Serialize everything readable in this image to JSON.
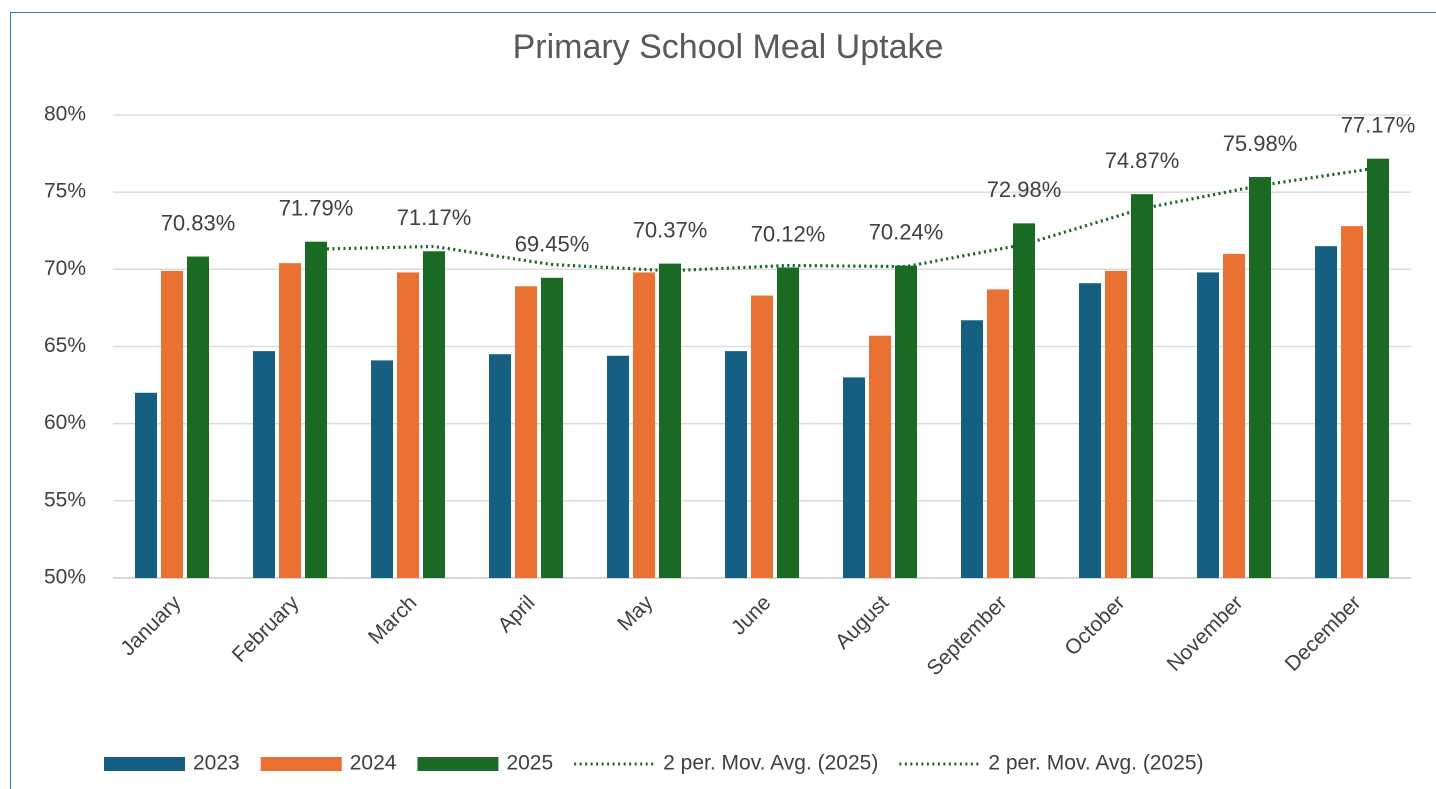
{
  "chart_data": {
    "type": "bar",
    "title": "Primary School Meal Uptake",
    "categories": [
      "January",
      "February",
      "March",
      "April",
      "May",
      "June",
      "August",
      "September",
      "October",
      "November",
      "December"
    ],
    "series": [
      {
        "name": "2023",
        "color": "#156082",
        "values": [
          62.0,
          64.7,
          64.1,
          64.5,
          64.4,
          64.7,
          63.0,
          66.7,
          69.1,
          69.8,
          71.5
        ]
      },
      {
        "name": "2024",
        "color": "#E97132",
        "values": [
          69.9,
          70.4,
          69.8,
          68.9,
          69.8,
          68.3,
          65.7,
          68.7,
          69.9,
          71.0,
          72.8
        ]
      },
      {
        "name": "2025",
        "color": "#196B24",
        "values": [
          70.83,
          71.79,
          71.17,
          69.45,
          70.37,
          70.12,
          70.24,
          72.98,
          74.87,
          75.98,
          77.17
        ],
        "value_labels": [
          "70.83%",
          "71.79%",
          "71.17%",
          "69.45%",
          "70.37%",
          "70.12%",
          "70.24%",
          "72.98%",
          "74.87%",
          "75.98%",
          "77.17%"
        ]
      },
      {
        "name": "2 per. Mov. Avg. (2025)",
        "type": "line",
        "style": "dotted",
        "color": "#196B24",
        "values": [
          null,
          71.31,
          71.48,
          70.31,
          69.91,
          70.25,
          70.18,
          71.61,
          73.93,
          75.43,
          76.58
        ]
      },
      {
        "name": "2 per. Mov. Avg. (2025)",
        "type": "line",
        "style": "dotted",
        "color": "#196B24",
        "values": [
          null,
          71.31,
          71.48,
          70.31,
          69.91,
          70.25,
          70.18,
          71.61,
          73.93,
          75.43,
          76.58
        ]
      }
    ],
    "ylim": [
      50,
      80
    ],
    "yticks": [
      {
        "value": 50,
        "label": "50%"
      },
      {
        "value": 55,
        "label": "55%"
      },
      {
        "value": 60,
        "label": "60%"
      },
      {
        "value": 65,
        "label": "65%"
      },
      {
        "value": 70,
        "label": "70%"
      },
      {
        "value": 75,
        "label": "75%"
      },
      {
        "value": 80,
        "label": "80%"
      }
    ],
    "grid": true,
    "legend": "bottom"
  }
}
